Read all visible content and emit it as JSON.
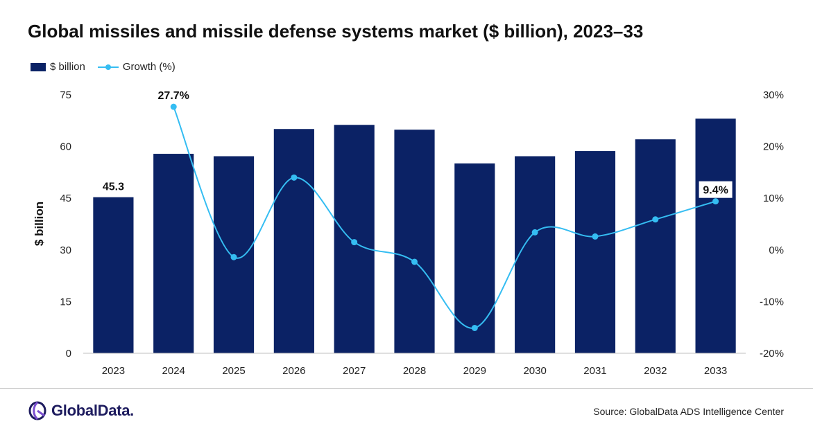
{
  "title": "Global missiles and missile defense systems market ($ billion), 2023–33",
  "source": "Source: GlobalData ADS Intelligence Center",
  "logo": {
    "name": "GlobalData."
  },
  "colors": {
    "bar": "#0b2265",
    "line": "#35bdf2"
  },
  "chart_data": {
    "type": "bar",
    "title": "Global missiles and missile defense systems market ($ billion), 2023–33",
    "categories": [
      "2023",
      "2024",
      "2025",
      "2026",
      "2027",
      "2028",
      "2029",
      "2030",
      "2031",
      "2032",
      "2033"
    ],
    "series": [
      {
        "name": "$ billion",
        "type": "bar",
        "axis": "left",
        "values": [
          45.3,
          57.9,
          57.2,
          65.1,
          66.3,
          64.9,
          55.1,
          57.2,
          58.7,
          62.1,
          68.1
        ]
      },
      {
        "name": "Growth (%)",
        "type": "line",
        "axis": "right",
        "values": [
          null,
          27.7,
          -1.4,
          14.0,
          1.5,
          -2.3,
          -15.1,
          3.4,
          2.6,
          5.9,
          9.4
        ]
      }
    ],
    "ylabel": "$ billion",
    "ylim": [
      0,
      75
    ],
    "yticks": [
      "0",
      "15",
      "30",
      "45",
      "60",
      "75"
    ],
    "y2lim": [
      -20,
      30
    ],
    "y2ticks": [
      "-20%",
      "-10%",
      "0%",
      "10%",
      "20%",
      "30%"
    ],
    "annotations": [
      {
        "series": "$ billion",
        "category": "2023",
        "text": "45.3"
      },
      {
        "series": "Growth (%)",
        "category": "2024",
        "text": "27.7%"
      },
      {
        "series": "Growth (%)",
        "category": "2033",
        "text": "9.4%"
      }
    ],
    "legend": "top-left",
    "grid": false
  }
}
